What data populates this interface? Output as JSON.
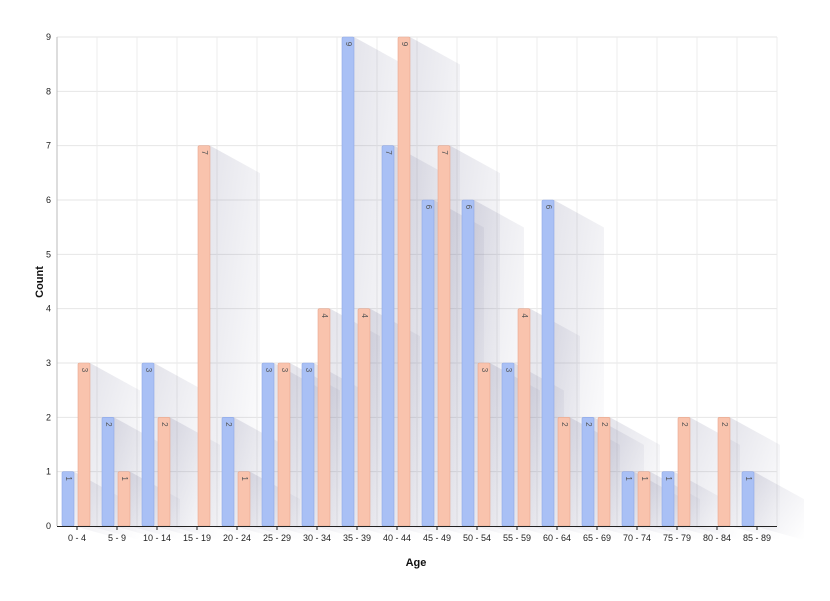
{
  "chart_data": {
    "type": "bar",
    "categories": [
      "0 - 4",
      "5 - 9",
      "10 - 14",
      "15 - 19",
      "20 - 24",
      "25 - 29",
      "30 - 34",
      "35 - 39",
      "40 - 44",
      "45 - 49",
      "50 - 54",
      "55 - 59",
      "60 - 64",
      "65 - 69",
      "70 - 74",
      "75 - 79",
      "80 - 84",
      "85 - 89"
    ],
    "series": [
      {
        "color": "#a9c0f5",
        "values": [
          1,
          2,
          3,
          0,
          2,
          3,
          3,
          9,
          7,
          6,
          6,
          3,
          6,
          2,
          1,
          1,
          0,
          1
        ]
      },
      {
        "color": "#f9c3ad",
        "values": [
          3,
          1,
          2,
          7,
          1,
          3,
          4,
          4,
          9,
          7,
          3,
          4,
          2,
          2,
          1,
          2,
          2,
          0
        ]
      }
    ],
    "xlabel": "Age",
    "ylabel": "Count",
    "yticks": [
      "0",
      "1",
      "2",
      "3",
      "4",
      "5",
      "6",
      "7",
      "8",
      "9"
    ],
    "ylim": [
      0,
      9
    ],
    "grid": true,
    "legend": "none"
  }
}
